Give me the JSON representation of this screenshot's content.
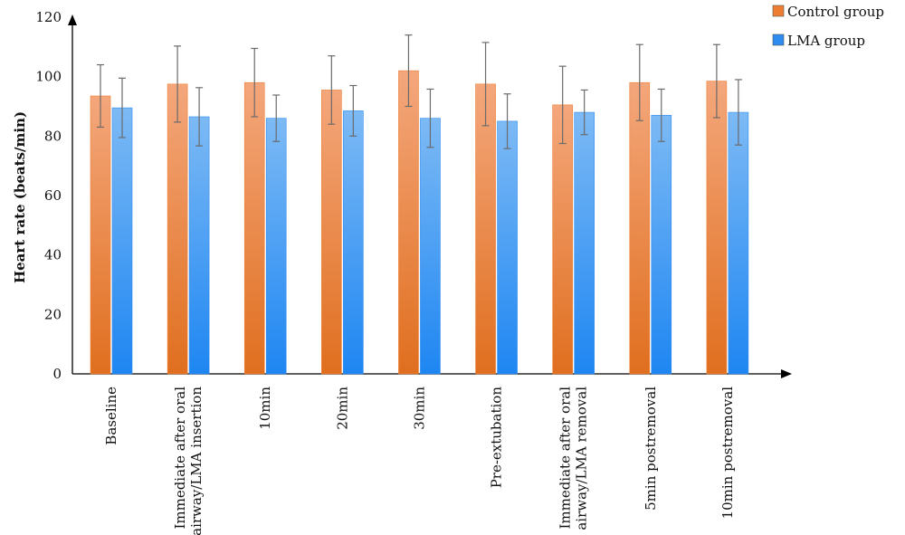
{
  "chart_data": {
    "type": "bar",
    "title": "",
    "xlabel": "",
    "ylabel": "Heart rate (beats/min)",
    "ylim": [
      0,
      120
    ],
    "yticks": [
      0,
      20,
      40,
      60,
      80,
      100,
      120
    ],
    "grid": false,
    "legend_position": "top-right",
    "categories": [
      [
        "Baseline"
      ],
      [
        "Immediate after oral",
        "airway/LMA insertion"
      ],
      [
        "10min"
      ],
      [
        "20min"
      ],
      [
        "30min"
      ],
      [
        "Pre-extubation"
      ],
      [
        "Immediate after oral",
        "airway/LMA removal"
      ],
      [
        "5min postremoval"
      ],
      [
        "10min postremoval"
      ]
    ],
    "series": [
      {
        "name": "Control group",
        "color": "#ED7D31",
        "values": [
          93.5,
          97.5,
          98,
          95.5,
          102,
          97.5,
          90.5,
          98,
          98.5
        ],
        "error": [
          10.5,
          12.8,
          11.5,
          11.5,
          12,
          14,
          13,
          12.8,
          12.3
        ]
      },
      {
        "name": "LMA group",
        "color": "#2E8BEF",
        "values": [
          89.5,
          86.5,
          86,
          88.5,
          86,
          85,
          88,
          87,
          88
        ],
        "error": [
          10,
          9.8,
          7.8,
          8.5,
          9.8,
          9.2,
          7.5,
          8.8,
          11
        ]
      }
    ]
  }
}
